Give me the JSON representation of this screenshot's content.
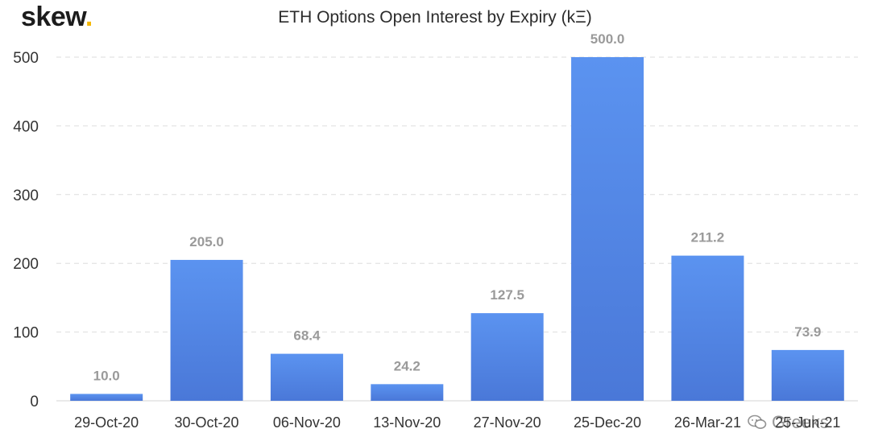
{
  "logo": {
    "text": "skew",
    "dot": "."
  },
  "watermark": {
    "text": "Greeks",
    "icon": "wechat-icon"
  },
  "colors": {
    "bar_top": "#5b93f0",
    "bar_bottom": "#4a78d8",
    "label": "#9a9a9a",
    "grid": "#dedede",
    "axis_text": "#333333"
  },
  "chart_data": {
    "type": "bar",
    "title": "ETH Options Open Interest by Expiry (kΞ)",
    "xlabel": "",
    "ylabel": "",
    "categories": [
      "29-Oct-20",
      "30-Oct-20",
      "06-Nov-20",
      "13-Nov-20",
      "27-Nov-20",
      "25-Dec-20",
      "26-Mar-21",
      "25-Jun-21"
    ],
    "values": [
      10.0,
      205.0,
      68.4,
      24.2,
      127.5,
      500.0,
      211.2,
      73.9
    ],
    "data_labels": [
      "10.0",
      "205.0",
      "68.4",
      "24.2",
      "127.5",
      "500.0",
      "211.2",
      "73.9"
    ],
    "y_ticks": [
      "0",
      "100",
      "200",
      "300",
      "400",
      "500"
    ],
    "ylim": [
      0,
      500
    ],
    "grid": true,
    "legend": "none"
  }
}
